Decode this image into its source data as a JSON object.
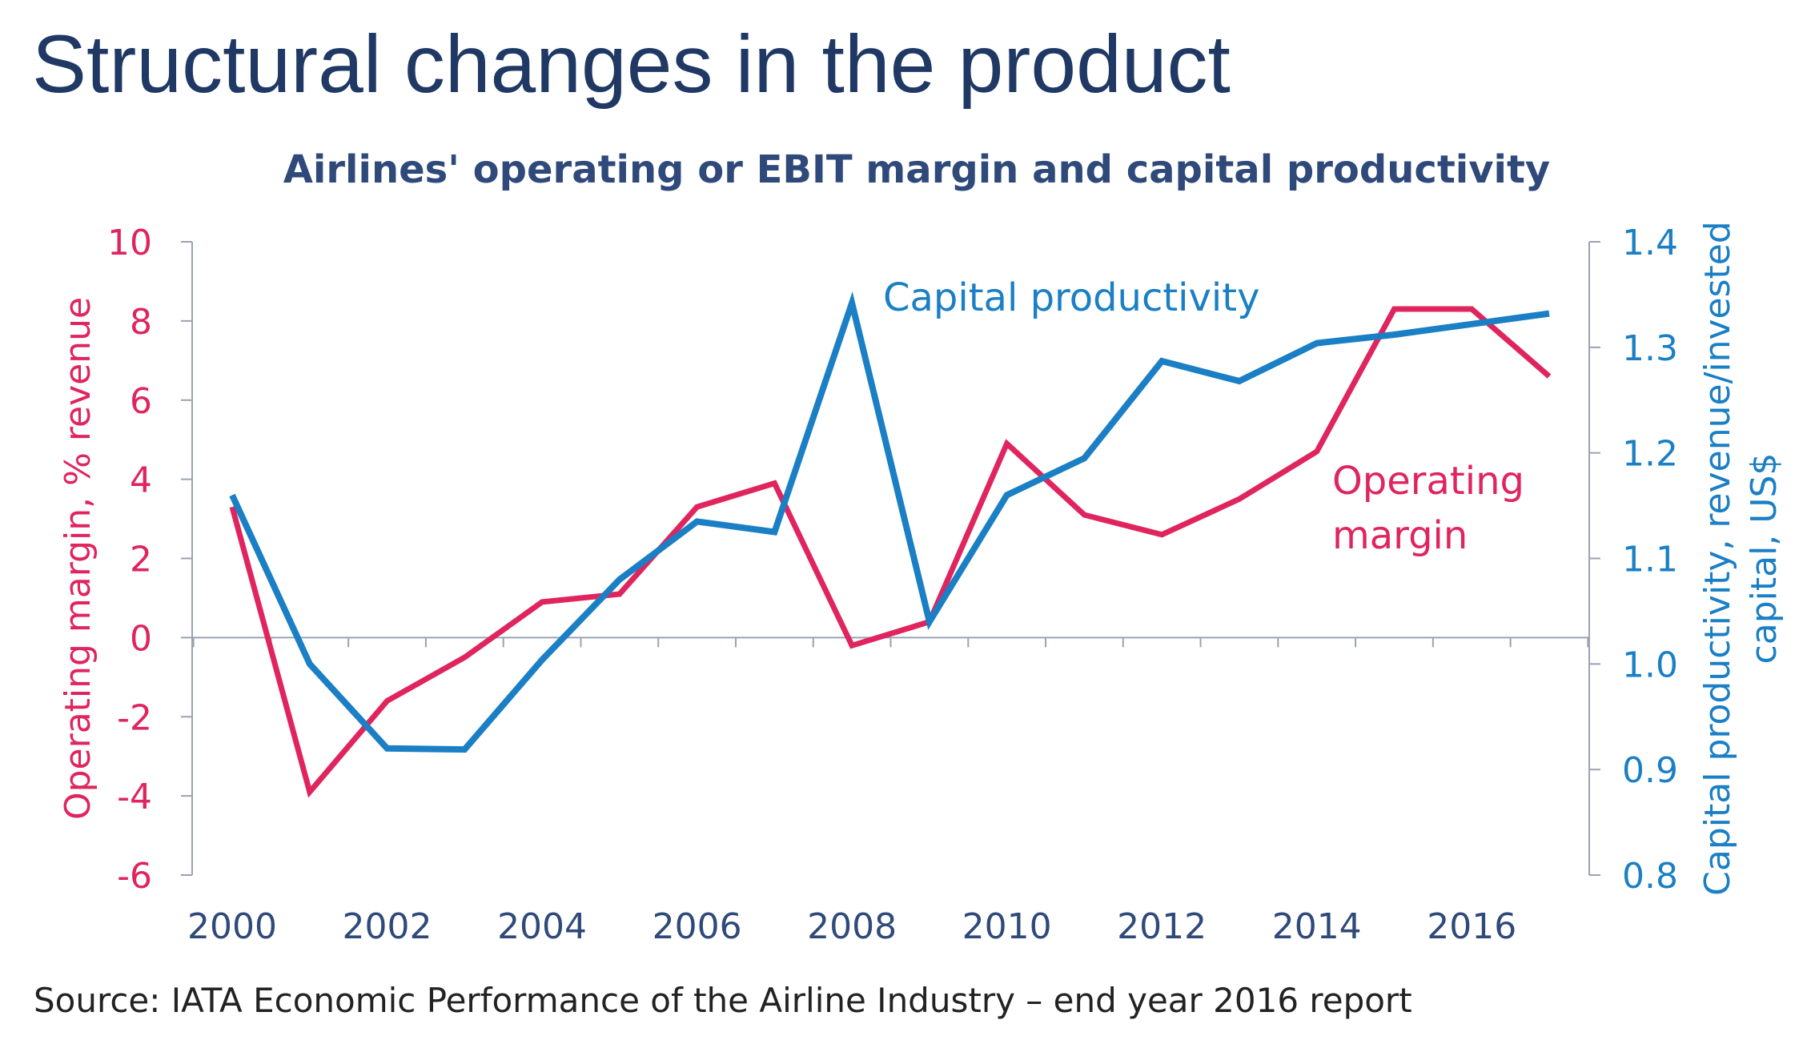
{
  "slide_title": "Structural changes in the product",
  "source": "Source: IATA Economic Performance of the Airline Industry – end year 2016 report",
  "colors": {
    "title": "#1f3864",
    "chart_title": "#2f4a7a",
    "operating_margin": "#e0245e",
    "capital_productivity": "#1a7fc4",
    "axis": "#9aa3b0",
    "x_ticks": "#2f4a7a"
  },
  "chart_data": {
    "type": "line",
    "title": "Airlines' operating or EBIT margin and capital productivity",
    "x": [
      2000,
      2001,
      2002,
      2003,
      2004,
      2005,
      2006,
      2007,
      2008,
      2009,
      2010,
      2011,
      2012,
      2013,
      2014,
      2015,
      2016,
      2017
    ],
    "x_tick_labels": [
      "2000",
      "2002",
      "2004",
      "2006",
      "2008",
      "2010",
      "2012",
      "2014",
      "2016"
    ],
    "xlim": [
      2000,
      2017
    ],
    "y_left": {
      "label": "Operating margin, % revenue",
      "lim": [
        -6,
        10
      ],
      "ticks": [
        "10",
        "8",
        "6",
        "4",
        "2",
        "0",
        "-2",
        "-4",
        "-6"
      ]
    },
    "y_right": {
      "label": "Capital productivity, revenue/invested capital, US$",
      "label_lines": [
        "Capital productivity, revenue/invested",
        "capital, US$"
      ],
      "lim": [
        0.8,
        1.4
      ],
      "ticks": [
        "1.4",
        "1.3",
        "1.2",
        "1.1",
        "1.0",
        "0.9",
        "0.8"
      ]
    },
    "series": [
      {
        "name": "Operating margin",
        "label_lines": [
          "Operating",
          "margin"
        ],
        "axis": "left",
        "values": [
          3.3,
          -3.9,
          -1.6,
          -0.5,
          0.9,
          1.1,
          3.3,
          3.9,
          -0.2,
          0.4,
          4.9,
          3.1,
          2.6,
          3.5,
          4.7,
          8.3,
          8.3,
          6.6
        ]
      },
      {
        "name": "Capital productivity",
        "label_lines": [
          "Capital productivity"
        ],
        "axis": "right",
        "values": [
          1.16,
          1.0,
          0.92,
          0.919,
          1.004,
          1.08,
          1.135,
          1.125,
          1.342,
          1.04,
          1.16,
          1.195,
          1.287,
          1.268,
          1.304,
          1.312,
          1.322,
          1.332
        ]
      }
    ],
    "grid": false,
    "zero_line": true
  }
}
